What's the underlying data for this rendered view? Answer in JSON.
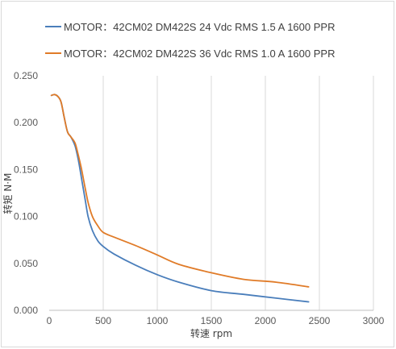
{
  "chart_data": {
    "type": "line",
    "title": "",
    "xlabel": "转速 rpm",
    "ylabel": "转矩 N·M",
    "xlim": [
      0,
      3000
    ],
    "ylim": [
      0,
      0.25
    ],
    "x_ticks": [
      "0",
      "500",
      "1000",
      "1500",
      "2000",
      "2500",
      "3000"
    ],
    "y_ticks": [
      "0.000",
      "0.050",
      "0.100",
      "0.150",
      "0.200",
      "0.250"
    ],
    "grid": "vertical",
    "legend_position": "top",
    "series": [
      {
        "name": "MOTOR：42CM02  DM422S 24 Vdc  RMS 1.5 A  1600 PPR",
        "color": "#4a7ebb",
        "x": [
          20,
          50,
          80,
          110,
          140,
          170,
          200,
          240,
          270,
          300,
          330,
          360,
          400,
          450,
          500,
          600,
          800,
          1000,
          1200,
          1500,
          1800,
          2100,
          2400
        ],
        "y": [
          0.229,
          0.23,
          0.228,
          0.222,
          0.205,
          0.19,
          0.185,
          0.175,
          0.16,
          0.14,
          0.12,
          0.1,
          0.085,
          0.074,
          0.068,
          0.06,
          0.048,
          0.038,
          0.03,
          0.021,
          0.017,
          0.013,
          0.009
        ]
      },
      {
        "name": "MOTOR：42CM02  DM422S 36 Vdc  RMS 1.0 A  1600 PPR",
        "color": "#e07b28",
        "x": [
          20,
          50,
          80,
          110,
          140,
          170,
          200,
          240,
          270,
          300,
          330,
          360,
          400,
          450,
          500,
          600,
          800,
          1000,
          1200,
          1500,
          1800,
          2100,
          2400
        ],
        "y": [
          0.229,
          0.23,
          0.228,
          0.222,
          0.205,
          0.19,
          0.185,
          0.178,
          0.165,
          0.15,
          0.132,
          0.115,
          0.1,
          0.09,
          0.083,
          0.078,
          0.069,
          0.059,
          0.049,
          0.04,
          0.033,
          0.03,
          0.025
        ]
      }
    ]
  }
}
